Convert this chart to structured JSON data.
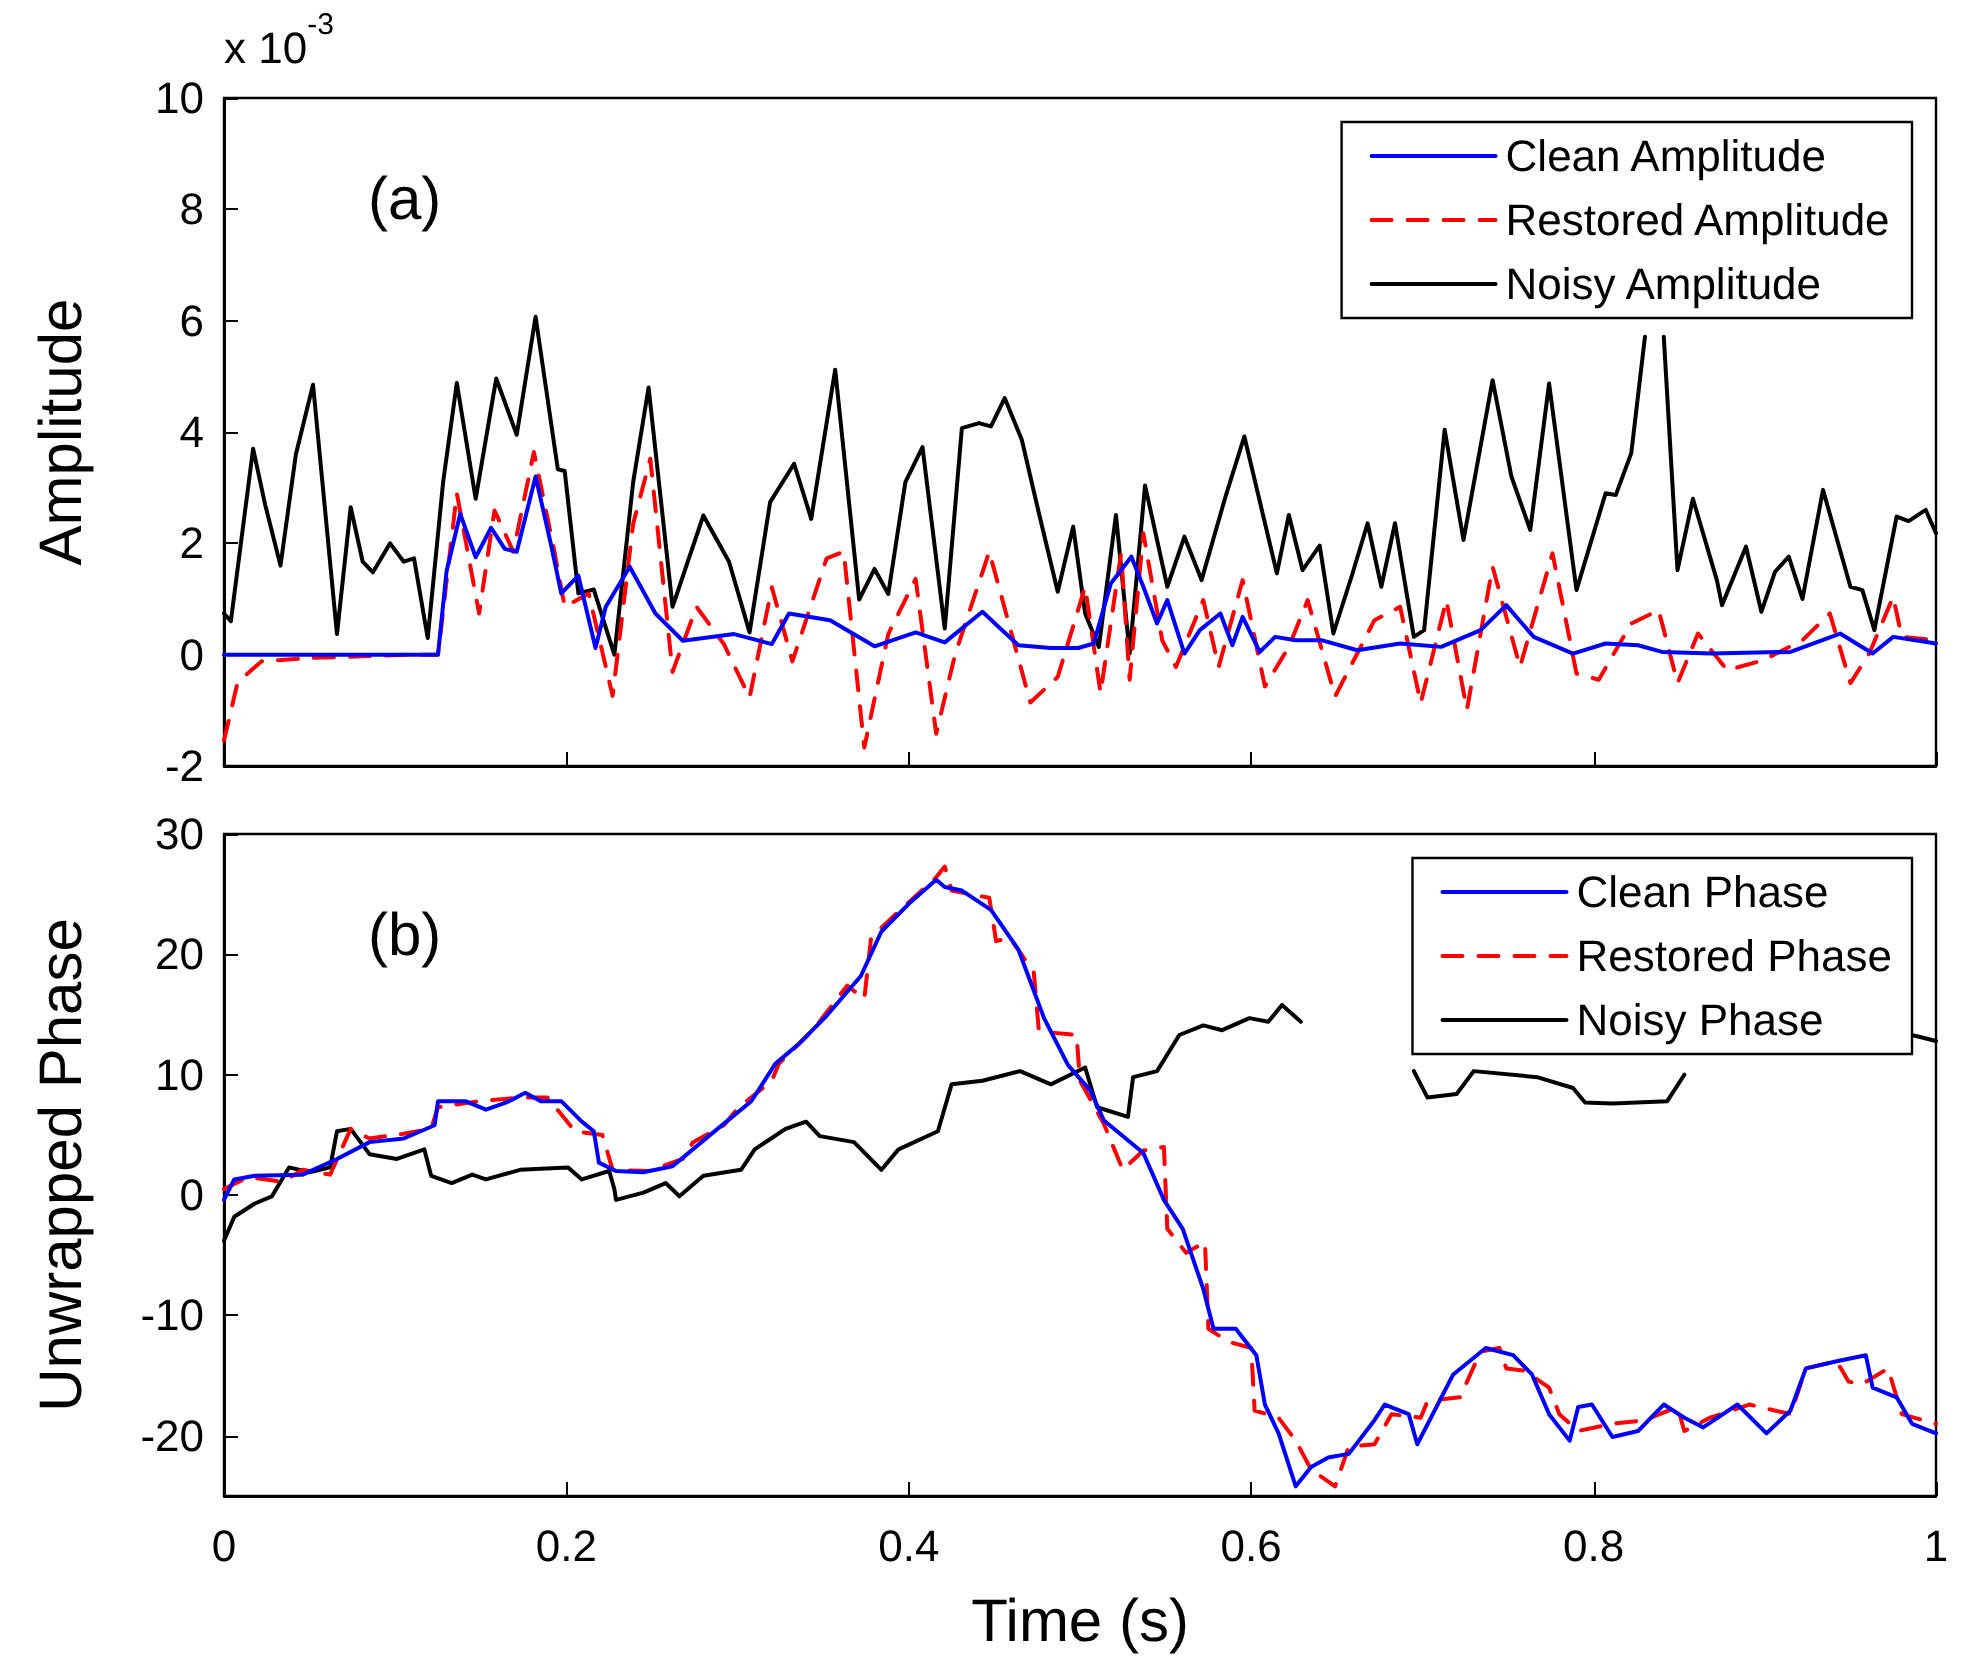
{
  "chart_data": [
    {
      "type": "line",
      "title": "(a)",
      "ylabel": "Amplitude",
      "annotations": [
        "x 10$^{-3}$"
      ],
      "xlim": [
        0,
        1
      ],
      "xticks": [
        0,
        0.2,
        0.4,
        0.6,
        0.8,
        1
      ],
      "ylim": [
        -2,
        10
      ],
      "yticks": [
        -2,
        0,
        2,
        4,
        6,
        8,
        10
      ],
      "tick_labels": "y",
      "grid": false,
      "legend": "top right",
      "series": [
        {
          "name": "Clean Amplitude",
          "color": "#0000ff",
          "line_style": "solid",
          "x": [
            0,
            0.125,
            0.13,
            0.138,
            0.147,
            0.156,
            0.164,
            0.171,
            0.182,
            0.191,
            0.197,
            0.207,
            0.217,
            0.223,
            0.237,
            0.252,
            0.268,
            0.298,
            0.32,
            0.33,
            0.354,
            0.38,
            0.404,
            0.421,
            0.443,
            0.464,
            0.483,
            0.499,
            0.508,
            0.518,
            0.53,
            0.537,
            0.545,
            0.551,
            0.561,
            0.57,
            0.582,
            0.589,
            0.595,
            0.605,
            0.614,
            0.626,
            0.641,
            0.662,
            0.687,
            0.711,
            0.734,
            0.749,
            0.765,
            0.788,
            0.807,
            0.826,
            0.84,
            0.869,
            0.915,
            0.944,
            0.963,
            0.975,
            1.0
          ],
          "values": [
            0,
            0,
            1.5,
            2.53,
            1.75,
            2.28,
            1.9,
            1.85,
            3.2,
            1.98,
            1.1,
            1.42,
            0.12,
            0.86,
            1.58,
            0.74,
            0.25,
            0.37,
            0.19,
            0.74,
            0.62,
            0.15,
            0.4,
            0.22,
            0.77,
            0.17,
            0.12,
            0.12,
            0.2,
            1.28,
            1.76,
            1.22,
            0.56,
            0.98,
            0.02,
            0.44,
            0.74,
            0.17,
            0.68,
            0.05,
            0.32,
            0.26,
            0.26,
            0.08,
            0.2,
            0.14,
            0.44,
            0.89,
            0.32,
            0.02,
            0.2,
            0.17,
            0.05,
            0.02,
            0.05,
            0.38,
            0.02,
            0.32,
            0.2
          ]
        },
        {
          "name": "Restored Amplitude",
          "color": "#ff0000",
          "line_style": "dashed",
          "x": [
            0,
            0.008,
            0.022,
            0.05,
            0.109,
            0.125,
            0.136,
            0.149,
            0.158,
            0.169,
            0.181,
            0.193,
            0.199,
            0.213,
            0.227,
            0.239,
            0.249,
            0.262,
            0.276,
            0.292,
            0.307,
            0.32,
            0.332,
            0.352,
            0.362,
            0.374,
            0.388,
            0.404,
            0.416,
            0.427,
            0.447,
            0.471,
            0.487,
            0.503,
            0.512,
            0.524,
            0.529,
            0.537,
            0.548,
            0.556,
            0.572,
            0.581,
            0.595,
            0.608,
            0.622,
            0.633,
            0.649,
            0.672,
            0.687,
            0.699,
            0.714,
            0.726,
            0.741,
            0.757,
            0.776,
            0.79,
            0.803,
            0.822,
            0.838,
            0.849,
            0.861,
            0.878,
            0.899,
            0.922,
            0.938,
            0.95,
            0.961,
            0.975,
            0.98,
            1.0
          ],
          "values": [
            -1.54,
            -0.49,
            -0.12,
            -0.06,
            0,
            0,
            2.9,
            0.74,
            2.59,
            1.85,
            3.64,
            1.85,
            0.86,
            1.1,
            -0.74,
            2.35,
            3.52,
            -0.31,
            0.86,
            0.19,
            -0.77,
            1.21,
            -0.12,
            1.73,
            1.85,
            -1.67,
            0.37,
            1.36,
            -1.42,
            0,
            1.85,
            -0.86,
            -0.4,
            1.22,
            -0.69,
            1.82,
            -0.45,
            2.18,
            0.26,
            -0.22,
            0.98,
            -0.22,
            1.34,
            -0.57,
            0.14,
            0.98,
            -0.75,
            0.62,
            0.86,
            -0.87,
            0.98,
            -0.99,
            1.58,
            -0.22,
            1.82,
            -0.34,
            -0.45,
            0.56,
            0.8,
            -0.51,
            0.38,
            -0.28,
            -0.1,
            0.26,
            0.74,
            -0.51,
            0.02,
            1.04,
            0.32,
            0.26
          ]
        },
        {
          "name": "Noisy Amplitude",
          "color": "#000000",
          "line_style": "solid",
          "x": [
            0,
            0.004,
            0.017,
            0.024,
            0.033,
            0.042,
            0.052,
            0.066,
            0.074,
            0.081,
            0.087,
            0.097,
            0.105,
            0.111,
            0.119,
            0.128,
            0.136,
            0.147,
            0.159,
            0.171,
            0.182,
            0.195,
            0.199,
            0.207,
            0.216,
            0.228,
            0.239,
            0.248,
            0.262,
            0.28,
            0.295,
            0.307,
            0.319,
            0.333,
            0.343,
            0.357,
            0.371,
            0.38,
            0.388,
            0.398,
            0.408,
            0.421,
            0.431,
            0.441,
            0.448,
            0.456,
            0.466,
            0.476,
            0.487,
            0.496,
            0.503,
            0.511,
            0.521,
            0.529,
            0.538,
            0.551,
            0.561,
            0.571,
            0.585,
            0.596,
            0.615,
            0.622,
            0.63,
            0.64,
            0.648,
            0.659,
            0.668,
            0.676,
            0.684,
            0.695,
            0.701,
            0.713,
            0.724,
            0.741,
            0.752,
            0.763,
            0.774,
            0.79,
            0.807,
            0.813,
            0.822,
            0.83,
            0.835,
            0.841,
            0.849,
            0.858,
            0.872,
            0.875,
            0.889,
            0.898,
            0.906,
            0.914,
            0.922,
            0.934,
            0.95,
            0.957,
            0.964,
            0.977,
            0.984,
            0.994,
            1.0
          ],
          "values": [
            0.74,
            0.6,
            3.7,
            2.7,
            1.6,
            3.6,
            4.85,
            0.37,
            2.65,
            1.67,
            1.48,
            2.0,
            1.67,
            1.73,
            0.3,
            3.1,
            4.88,
            2.8,
            4.96,
            3.95,
            6.07,
            3.33,
            3.3,
            1.1,
            1.17,
            0,
            3.1,
            4.8,
            0.86,
            2.5,
            1.67,
            0.4,
            2.74,
            3.43,
            2.44,
            5.12,
            0.99,
            1.54,
            1.09,
            3.1,
            3.73,
            0.47,
            4.07,
            4.16,
            4.1,
            4.61,
            3.86,
            2.54,
            1.13,
            2.3,
            0.74,
            0.14,
            2.51,
            0.02,
            3.04,
            1.22,
            2.12,
            1.34,
            2.84,
            3.92,
            1.46,
            2.51,
            1.52,
            1.96,
            0.38,
            1.44,
            2.36,
            1.22,
            2.36,
            0.32,
            0.44,
            4.04,
            2.06,
            4.93,
            3.2,
            2.24,
            4.87,
            1.16,
            2.9,
            2.87,
            3.62,
            5.71,
            null,
            5.71,
            1.52,
            2.8,
            1.34,
            0.89,
            1.94,
            0.77,
            1.49,
            1.76,
            1.0,
            2.96,
            1.22,
            1.16,
            0.44,
            2.48,
            2.4,
            2.6,
            2.18
          ]
        }
      ]
    },
    {
      "type": "line",
      "title": "(b)",
      "xlabel": "Time (s)",
      "ylabel": "Unwrapped Phase",
      "xlim": [
        0,
        1
      ],
      "xticks": [
        0,
        0.2,
        0.4,
        0.6,
        0.8,
        1
      ],
      "ylim": [
        -25,
        30
      ],
      "yticks": [
        -20,
        -10,
        0,
        10,
        20,
        30
      ],
      "grid": false,
      "legend": "top right",
      "series": [
        {
          "name": "Clean Phase",
          "color": "#0000ff",
          "line_style": "solid",
          "x": [
            0,
            0.006,
            0.018,
            0.046,
            0.066,
            0.085,
            0.105,
            0.123,
            0.125,
            0.141,
            0.153,
            0.165,
            0.176,
            0.185,
            0.197,
            0.209,
            0.216,
            0.219,
            0.229,
            0.245,
            0.262,
            0.284,
            0.308,
            0.322,
            0.336,
            0.352,
            0.372,
            0.384,
            0.4,
            0.416,
            0.421,
            0.431,
            0.448,
            0.464,
            0.479,
            0.493,
            0.506,
            0.514,
            0.537,
            0.549,
            0.56,
            0.572,
            0.578,
            0.591,
            0.603,
            0.608,
            0.616,
            0.626,
            0.635,
            0.645,
            0.657,
            0.672,
            0.678,
            0.692,
            0.697,
            0.718,
            0.737,
            0.753,
            0.764,
            0.774,
            0.786,
            0.791,
            0.799,
            0.811,
            0.826,
            0.841,
            0.853,
            0.864,
            0.884,
            0.901,
            0.915,
            0.924,
            0.942,
            0.959,
            0.963,
            0.977,
            0.986,
            1.0
          ],
          "values": [
            -0.4,
            1.3,
            1.6,
            1.7,
            3,
            4.4,
            4.7,
            5.8,
            7.8,
            7.8,
            7.1,
            7.7,
            8.5,
            7.8,
            7.8,
            6.1,
            5.3,
            2.7,
            2.0,
            1.9,
            2.4,
            5.0,
            7.8,
            10.9,
            12.6,
            14.9,
            18.2,
            21.9,
            24.2,
            26.2,
            25.6,
            25.3,
            23.7,
            20.4,
            14.7,
            10.8,
            8.7,
            6.2,
            3.5,
            -0.4,
            -2.8,
            -7.8,
            -11.1,
            -11.1,
            -13.3,
            -17.4,
            -19.8,
            -24.2,
            -22.6,
            -21.8,
            -21.5,
            -18.7,
            -17.4,
            -18.2,
            -20.7,
            -14.9,
            -12.7,
            -13.3,
            -14.9,
            -18.2,
            -20.4,
            -17.6,
            -17.4,
            -20.1,
            -19.6,
            -17.4,
            -18.5,
            -19.3,
            -17.4,
            -19.8,
            -17.9,
            -14.4,
            -13.8,
            -13.3,
            -16.0,
            -16.8,
            -19.0,
            -19.8
          ]
        },
        {
          "name": "Restored Phase",
          "color": "#ff0000",
          "line_style": "dashed",
          "x": [
            0,
            0.014,
            0.034,
            0.046,
            0.062,
            0.074,
            0.085,
            0.105,
            0.121,
            0.125,
            0.149,
            0.173,
            0.189,
            0.205,
            0.221,
            0.227,
            0.248,
            0.268,
            0.274,
            0.292,
            0.3,
            0.32,
            0.324,
            0.344,
            0.364,
            0.374,
            0.378,
            0.392,
            0.416,
            0.421,
            0.425,
            0.447,
            0.451,
            0.459,
            0.473,
            0.476,
            0.498,
            0.5,
            0.514,
            0.525,
            0.537,
            0.549,
            0.551,
            0.562,
            0.573,
            0.575,
            0.587,
            0.6,
            0.602,
            0.616,
            0.626,
            0.635,
            0.649,
            0.657,
            0.672,
            0.682,
            0.699,
            0.703,
            0.722,
            0.734,
            0.745,
            0.749,
            0.76,
            0.774,
            0.78,
            0.791,
            0.811,
            0.83,
            0.849,
            0.853,
            0.868,
            0.891,
            0.915,
            0.924,
            0.942,
            0.949,
            0.957,
            0.972,
            0.98,
            1.0
          ],
          "values": [
            0.5,
            1.5,
            1.1,
            2.1,
            1.7,
            5.5,
            4.7,
            5.1,
            5.5,
            7.3,
            7.8,
            8.1,
            8.1,
            5.3,
            5.0,
            2.1,
            2.0,
            3.0,
            4.4,
            5.8,
            7.2,
            9.5,
            10.9,
            13.7,
            17.4,
            16.3,
            21.4,
            23.3,
            26.4,
            27.3,
            25.3,
            24.7,
            21.1,
            21.4,
            18.5,
            13.6,
            13.3,
            9.5,
            5.9,
            2.1,
            3.7,
            4.0,
            -2.8,
            -4.8,
            -3.9,
            -11.1,
            -12.2,
            -12.7,
            -17.9,
            -18.5,
            -20.4,
            -22.8,
            -24.2,
            -20.9,
            -20.7,
            -18.2,
            -18.5,
            -17.1,
            -16.8,
            -13.0,
            -12.7,
            -14.4,
            -14.6,
            -16.0,
            -18.2,
            -19.6,
            -19.0,
            -18.7,
            -17.6,
            -19.6,
            -18.5,
            -17.4,
            -18.2,
            -14.4,
            -13.8,
            -15.5,
            -15.7,
            -14.4,
            -18.2,
            -19.0
          ]
        },
        {
          "name": "Noisy Phase",
          "color": "#000000",
          "line_style": "solid",
          "x": [
            0,
            0.006,
            0.018,
            0.028,
            0.038,
            0.05,
            0.062,
            0.066,
            0.074,
            0.085,
            0.101,
            0.117,
            0.121,
            0.133,
            0.145,
            0.153,
            0.173,
            0.201,
            0.209,
            0.225,
            0.228,
            0.229,
            0.245,
            0.258,
            0.266,
            0.28,
            0.302,
            0.31,
            0.328,
            0.34,
            0.348,
            0.368,
            0.384,
            0.394,
            0.417,
            0.425,
            0.443,
            0.465,
            0.483,
            0.503,
            0.51,
            0.528,
            0.531,
            0.545,
            0.558,
            0.572,
            0.583,
            0.599,
            0.61,
            0.618,
            0.629,
            0.66,
            0.695,
            0.703,
            0.72,
            0.73,
            0.767,
            0.788,
            0.795,
            0.811,
            0.843,
            0.853,
            0.92,
            0.986,
            1.0
          ],
          "values": [
            -3.8,
            -1.8,
            -0.7,
            -0.1,
            2.3,
            1.9,
            2.3,
            5.3,
            5.5,
            3.4,
            3.0,
            3.8,
            1.6,
            1.0,
            1.7,
            1.3,
            2.1,
            2.3,
            1.3,
            2.0,
            0.5,
            -0.4,
            0.2,
            1.0,
            -0.1,
            1.6,
            2.1,
            3.8,
            5.5,
            6.1,
            4.9,
            4.4,
            2.1,
            3.8,
            5.3,
            9.2,
            9.5,
            10.3,
            9.2,
            10.6,
            7.3,
            6.5,
            9.8,
            10.3,
            13.3,
            14.1,
            13.7,
            14.7,
            14.4,
            15.8,
            14.4,
            null,
            10.3,
            8.1,
            8.4,
            10.3,
            9.8,
            8.9,
            7.7,
            7.6,
            7.8,
            10.0,
            null,
            13.3,
            12.8
          ]
        }
      ]
    }
  ]
}
